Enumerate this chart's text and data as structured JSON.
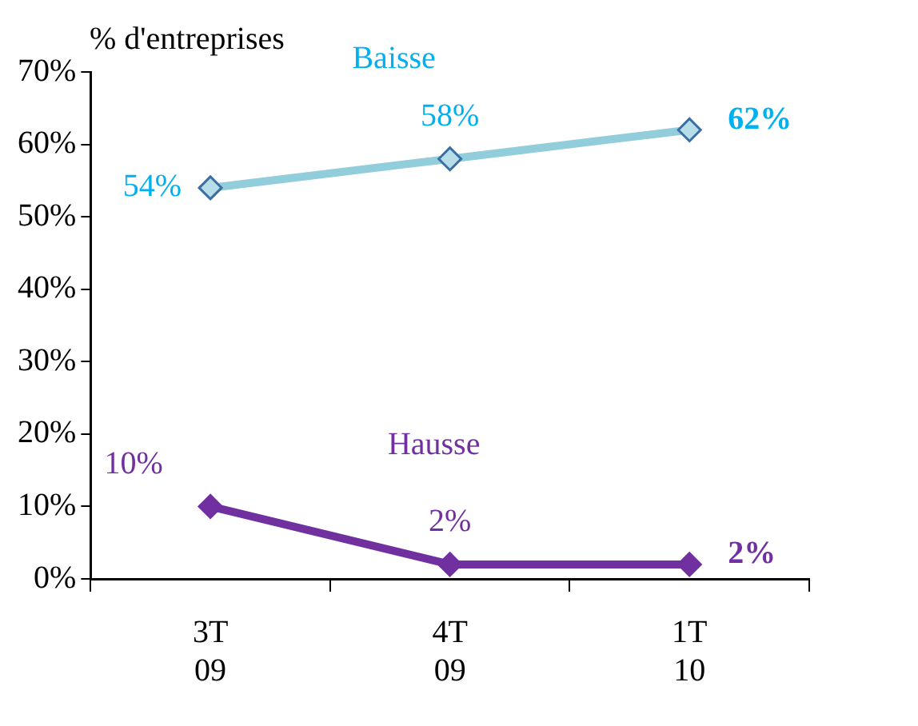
{
  "chart_data": {
    "type": "line",
    "ylabel": "% d'entreprises",
    "categories": [
      "3T 09",
      "4T 09",
      "1T 10"
    ],
    "series": [
      {
        "name": "Baisse",
        "color": "#92cddc",
        "values": [
          54,
          58,
          62
        ],
        "value_labels": [
          "54%",
          "58%",
          "62%"
        ]
      },
      {
        "name": "Hausse",
        "color": "#7030a0",
        "values": [
          10,
          2,
          2
        ],
        "value_labels": [
          "10%",
          "2%",
          "2%"
        ]
      }
    ],
    "ylim": [
      0,
      70
    ],
    "yticks": [
      {
        "value": 0,
        "label": "0%"
      },
      {
        "value": 10,
        "label": "10%"
      },
      {
        "value": 20,
        "label": "20%"
      },
      {
        "value": 30,
        "label": "30%"
      },
      {
        "value": 40,
        "label": "40%"
      },
      {
        "value": 50,
        "label": "50%"
      },
      {
        "value": 60,
        "label": "60%"
      },
      {
        "value": 70,
        "label": "70%"
      }
    ],
    "grid": false,
    "legend": false,
    "marker": "diamond",
    "line_style": "solid"
  }
}
